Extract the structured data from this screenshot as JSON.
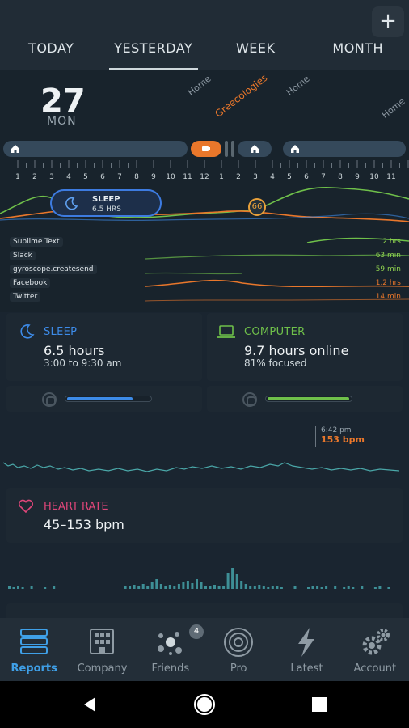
{
  "header": {
    "add_label": "+",
    "tabs": [
      {
        "label": "TODAY"
      },
      {
        "label": "YESTERDAY"
      },
      {
        "label": "WEEK"
      },
      {
        "label": "MONTH"
      }
    ]
  },
  "day": {
    "date_number": "27",
    "weekday": "MON",
    "locations": [
      "Home",
      "Greecologies",
      "Home",
      "Home"
    ]
  },
  "timeline": {
    "hours": [
      "1",
      "2",
      "3",
      "4",
      "5",
      "6",
      "7",
      "8",
      "9",
      "10",
      "11",
      "12",
      "1",
      "2",
      "3",
      "4",
      "5",
      "6",
      "7",
      "8",
      "9",
      "10",
      "11"
    ]
  },
  "sleep_pill": {
    "title": "SLEEP",
    "subtitle": "6.5 HRS"
  },
  "productivity_badge": "66",
  "apps": [
    {
      "name": "Sublime Text",
      "value": "2 hrs",
      "color": "#8fd14f"
    },
    {
      "name": "Slack",
      "value": "63 min",
      "color": "#8fd14f"
    },
    {
      "name": "gyroscope.createsend",
      "value": "59 min",
      "color": "#8fd14f"
    },
    {
      "name": "Facebook",
      "value": "1.2 hrs",
      "color": "#e9772b"
    },
    {
      "name": "Twitter",
      "value": "14 min",
      "color": "#e9772b"
    }
  ],
  "sleep_card": {
    "title": "SLEEP",
    "main": "6.5 hours",
    "sub": "3:00 to 9:30 am",
    "color": "#3d8be8",
    "progress": 0.78
  },
  "computer_card": {
    "title": "COMPUTER",
    "main": "9.7 hours online",
    "sub": "81% focused",
    "color": "#6fc04a",
    "progress": 0.97
  },
  "heart_tooltip": {
    "time": "6:42 pm",
    "bpm": "153 bpm"
  },
  "heart_card": {
    "title": "HEART RATE",
    "value": "45–153 bpm",
    "color": "#e0467a"
  },
  "navbar": {
    "items": [
      {
        "label": "Reports"
      },
      {
        "label": "Company"
      },
      {
        "label": "Friends"
      },
      {
        "label": "Pro"
      },
      {
        "label": "Latest"
      },
      {
        "label": "Account"
      }
    ],
    "friends_badge": "4"
  }
}
